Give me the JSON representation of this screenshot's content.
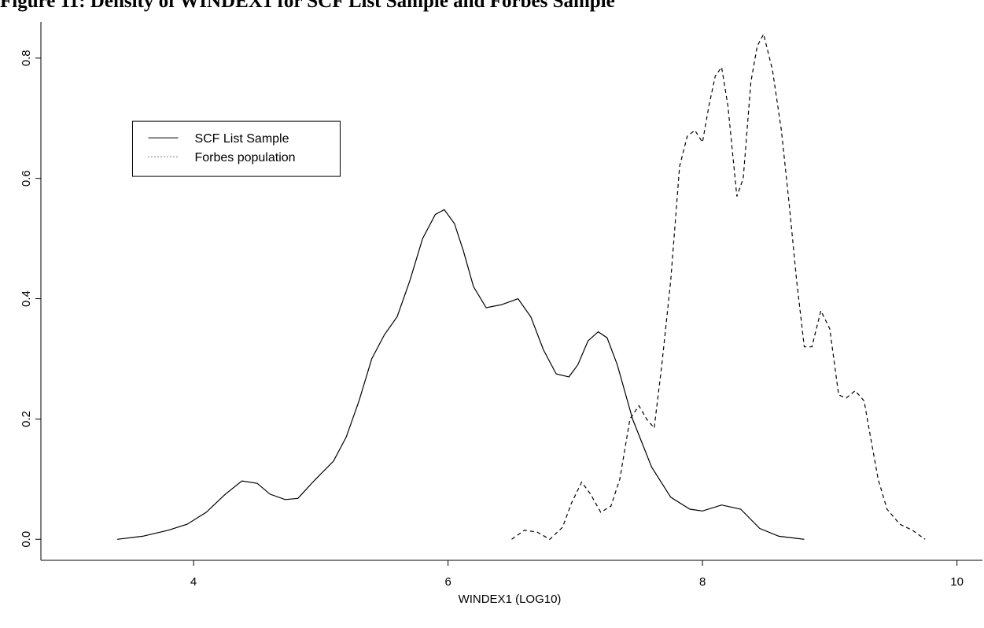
{
  "chart_data": {
    "type": "line",
    "title": "Figure 11: Density of WINDEX1 for SCF List Sample and Forbes Sample",
    "xlabel": "WINDEX1 (LOG10)",
    "ylabel": "",
    "xlim": [
      2.8,
      10.2
    ],
    "ylim": [
      -0.035,
      0.86
    ],
    "xticks": [
      4,
      6,
      8,
      10
    ],
    "yticks": [
      0.0,
      0.2,
      0.4,
      0.6,
      0.8
    ],
    "xtick_labels": [
      "4",
      "6",
      "8",
      "10"
    ],
    "ytick_labels": [
      "0.0",
      "0.2",
      "0.4",
      "0.6",
      "0.8"
    ],
    "grid": false,
    "legend": {
      "placement": "top-left",
      "entries": [
        {
          "label": "SCF List Sample",
          "style": "solid"
        },
        {
          "label": "Forbes population",
          "style": "dotted"
        }
      ]
    },
    "series": [
      {
        "name": "SCF List Sample",
        "style": "solid",
        "x": [
          3.4,
          3.6,
          3.8,
          3.95,
          4.1,
          4.25,
          4.38,
          4.5,
          4.6,
          4.72,
          4.82,
          4.95,
          5.1,
          5.2,
          5.3,
          5.4,
          5.5,
          5.6,
          5.7,
          5.8,
          5.9,
          5.97,
          6.05,
          6.12,
          6.2,
          6.3,
          6.42,
          6.55,
          6.65,
          6.75,
          6.85,
          6.95,
          7.02,
          7.1,
          7.18,
          7.25,
          7.33,
          7.45,
          7.6,
          7.75,
          7.9,
          8.0,
          8.15,
          8.3,
          8.45,
          8.6,
          8.8
        ],
        "y": [
          0.0,
          0.005,
          0.015,
          0.025,
          0.045,
          0.075,
          0.097,
          0.093,
          0.075,
          0.066,
          0.068,
          0.098,
          0.13,
          0.17,
          0.23,
          0.3,
          0.34,
          0.37,
          0.43,
          0.5,
          0.54,
          0.548,
          0.525,
          0.48,
          0.42,
          0.385,
          0.39,
          0.4,
          0.37,
          0.315,
          0.275,
          0.27,
          0.29,
          0.33,
          0.345,
          0.335,
          0.29,
          0.2,
          0.12,
          0.07,
          0.05,
          0.047,
          0.057,
          0.05,
          0.018,
          0.005,
          0.0
        ]
      },
      {
        "name": "Forbes population",
        "style": "dotted",
        "x": [
          6.5,
          6.6,
          6.7,
          6.8,
          6.9,
          6.97,
          7.05,
          7.12,
          7.2,
          7.28,
          7.35,
          7.43,
          7.5,
          7.56,
          7.62,
          7.68,
          7.75,
          7.82,
          7.88,
          7.94,
          8.0,
          8.05,
          8.1,
          8.15,
          8.2,
          8.27,
          8.32,
          8.38,
          8.43,
          8.48,
          8.55,
          8.62,
          8.68,
          8.74,
          8.8,
          8.86,
          8.93,
          9.0,
          9.07,
          9.13,
          9.2,
          9.27,
          9.32,
          9.38,
          9.45,
          9.55,
          9.65,
          9.75
        ],
        "y": [
          0.0,
          0.015,
          0.012,
          0.0,
          0.02,
          0.06,
          0.095,
          0.075,
          0.045,
          0.055,
          0.1,
          0.2,
          0.222,
          0.2,
          0.185,
          0.29,
          0.43,
          0.62,
          0.67,
          0.68,
          0.66,
          0.72,
          0.77,
          0.785,
          0.72,
          0.57,
          0.6,
          0.76,
          0.82,
          0.84,
          0.78,
          0.68,
          0.56,
          0.43,
          0.32,
          0.32,
          0.38,
          0.35,
          0.24,
          0.235,
          0.247,
          0.23,
          0.17,
          0.1,
          0.05,
          0.025,
          0.015,
          0.0
        ]
      }
    ]
  }
}
